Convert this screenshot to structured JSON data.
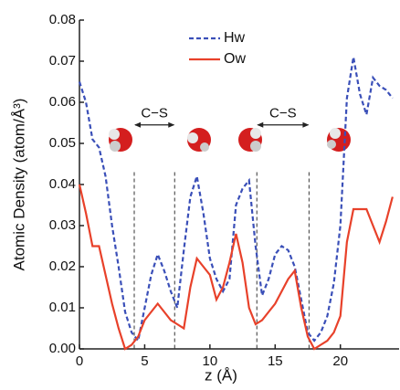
{
  "chart_data": {
    "type": "line",
    "x_label": "z (Å)",
    "y_label": "Atomic Density (atom/Å³)",
    "x": [
      0,
      0.5,
      1,
      1.5,
      2,
      2.5,
      3,
      3.5,
      4,
      4.5,
      5,
      5.5,
      6,
      6.5,
      7,
      7.5,
      8,
      8.5,
      9,
      9.5,
      10,
      10.5,
      11,
      11.5,
      12,
      12.5,
      13,
      13.5,
      14,
      14.5,
      15,
      15.5,
      16,
      16.5,
      17,
      17.5,
      18,
      18.5,
      19,
      19.5,
      20,
      20.5,
      21,
      21.5,
      22,
      22.5,
      23,
      23.5,
      24
    ],
    "series": [
      {
        "name": "Hw",
        "color": "#3a4fb8",
        "linestyle": "dashed",
        "values": [
          0.065,
          0.06,
          0.051,
          0.049,
          0.042,
          0.03,
          0.02,
          0.009,
          0.004,
          0.002,
          0.01,
          0.018,
          0.023,
          0.019,
          0.014,
          0.01,
          0.024,
          0.037,
          0.042,
          0.033,
          0.022,
          0.017,
          0.014,
          0.017,
          0.035,
          0.039,
          0.041,
          0.025,
          0.013,
          0.017,
          0.023,
          0.025,
          0.024,
          0.02,
          0.012,
          0.004,
          0.002,
          0.004,
          0.008,
          0.016,
          0.03,
          0.061,
          0.071,
          0.062,
          0.057,
          0.066,
          0.064,
          0.063,
          0.061
        ]
      },
      {
        "name": "Ow",
        "color": "#e8412a",
        "linestyle": "solid",
        "values": [
          0.04,
          0.033,
          0.025,
          0.025,
          0.018,
          0.011,
          0.005,
          0.0,
          0.001,
          0.003,
          0.007,
          0.009,
          0.011,
          0.009,
          0.007,
          0.006,
          0.005,
          0.015,
          0.022,
          0.02,
          0.018,
          0.012,
          0.015,
          0.021,
          0.028,
          0.021,
          0.01,
          0.006,
          0.007,
          0.009,
          0.011,
          0.014,
          0.017,
          0.019,
          0.01,
          0.003,
          0.0,
          0.001,
          0.002,
          0.004,
          0.008,
          0.026,
          0.034,
          0.034,
          0.034,
          0.03,
          0.026,
          0.031,
          0.037
        ]
      }
    ],
    "spans": [
      {
        "label": "C−S",
        "x": [
          4.2,
          7.3
        ]
      },
      {
        "label": "C−S",
        "x": [
          13.6,
          17.6
        ]
      }
    ],
    "xlim": [
      0,
      24.5
    ],
    "xticks": [
      0,
      5,
      10,
      15,
      20
    ],
    "ylim": [
      0,
      0.08
    ],
    "yticks": [
      {
        "value": 0,
        "label": "0.00"
      },
      0.01,
      0.02,
      0.03,
      0.04,
      0.05,
      0.06,
      0.07,
      0.08
    ],
    "legend": "upper center"
  }
}
